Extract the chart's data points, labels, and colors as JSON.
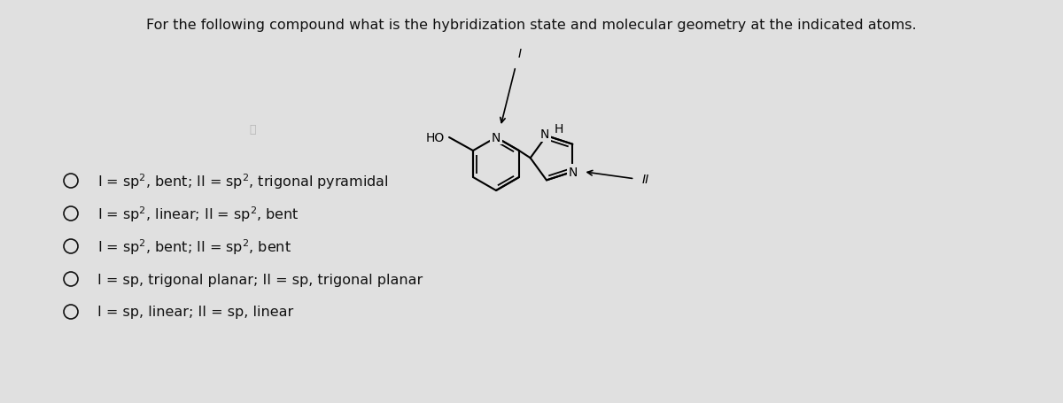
{
  "title": "For the following compound what is the hybridization state and molecular geometry at the indicated atoms.",
  "title_fontsize": 11.5,
  "bg_color": "#e0e0e0",
  "options": [
    "I = sp$^2$, bent; II = sp$^2$, trigonal pyramidal",
    "I = sp$^2$, linear; II = sp$^2$, bent",
    "I = sp$^2$, bent; II = sp$^2$, bent",
    "I = sp, trigonal planar; II = sp, trigonal planar",
    "I = sp, linear; II = sp, linear"
  ],
  "text_color": "#111111",
  "circle_color": "#111111"
}
